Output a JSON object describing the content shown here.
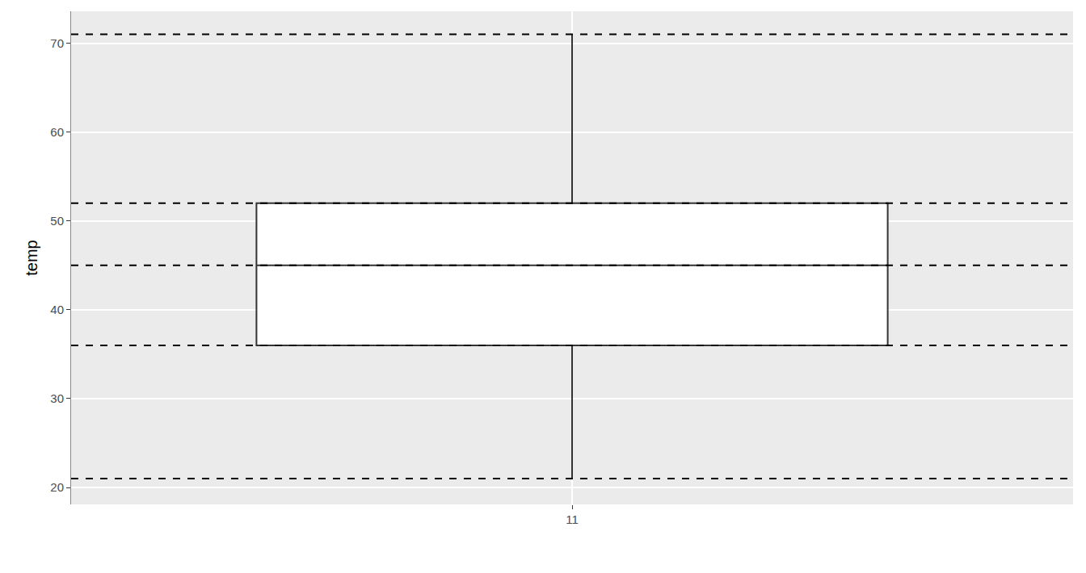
{
  "chart_data": {
    "type": "box",
    "y_label": "temp",
    "categories": [
      "11"
    ],
    "stats": {
      "lower": [
        21
      ],
      "q1": [
        36
      ],
      "median": [
        45
      ],
      "q3": [
        52
      ],
      "upper": [
        71
      ]
    },
    "color": "#ffffff",
    "ylim": [
      18.1,
      73.6
    ],
    "yticks": [
      20,
      30,
      40,
      50,
      60,
      70
    ],
    "grid": true,
    "reference_lines": {
      "values": [
        21,
        36,
        45,
        52,
        71
      ],
      "line_style": "dashed"
    }
  }
}
